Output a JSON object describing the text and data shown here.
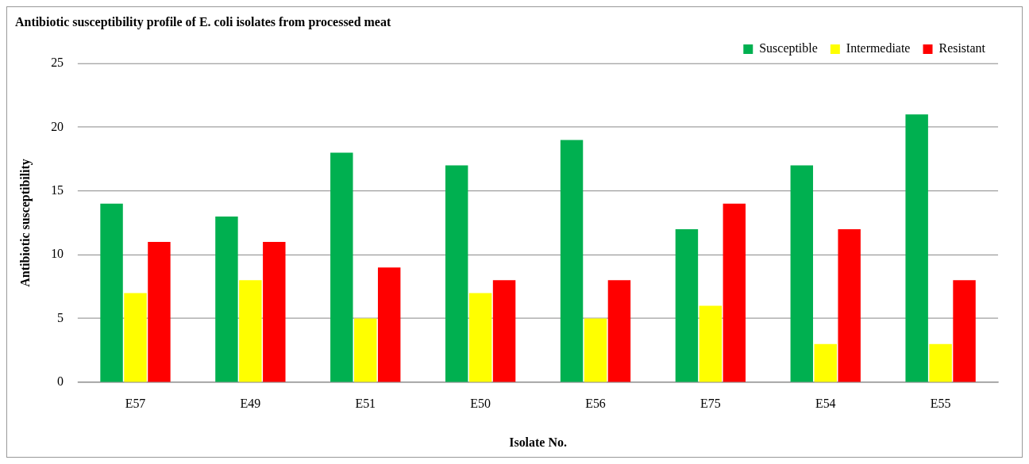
{
  "chart_data": {
    "type": "bar",
    "title": "Antibiotic susceptibility profile of E. coli isolates from processed meat",
    "xlabel": "Isolate No.",
    "ylabel": "Antibiotic susceptibility",
    "categories": [
      "E57",
      "E49",
      "E51",
      "E50",
      "E56",
      "E75",
      "E54",
      "E55"
    ],
    "series": [
      {
        "name": "Susceptible",
        "color": "#00b050",
        "values": [
          14,
          13,
          18,
          17,
          19,
          12,
          17,
          21
        ]
      },
      {
        "name": "Intermediate",
        "color": "#ffff00",
        "values": [
          7,
          8,
          5,
          7,
          5,
          6,
          3,
          3
        ]
      },
      {
        "name": "Resistant",
        "color": "#ff0000",
        "values": [
          11,
          11,
          9,
          8,
          8,
          14,
          12,
          8
        ]
      }
    ],
    "ylim": [
      0,
      25
    ],
    "yticks": [
      0,
      5,
      10,
      15,
      20,
      25
    ],
    "grid": "y",
    "legend": "top right"
  }
}
